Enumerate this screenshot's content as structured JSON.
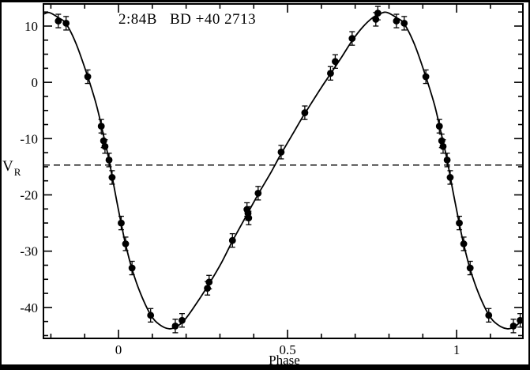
{
  "figure": {
    "title": {
      "series_id": "2:84B",
      "star_name": "BD +40 2713"
    },
    "x_axis": {
      "label": "Phase",
      "major_ticks": [
        0,
        0.5,
        1
      ],
      "major_tick_labels": [
        "0",
        "0.5",
        "1"
      ],
      "minor_ticks": [
        -0.2,
        -0.1,
        0.1,
        0.2,
        0.3,
        0.4,
        0.6,
        0.7,
        0.8,
        0.9,
        1.1
      ]
    },
    "y_axis": {
      "label_main": "V",
      "label_sub": "R",
      "major_ticks": [
        10,
        0,
        -10,
        -20,
        -30,
        -40
      ],
      "major_tick_labels": [
        "10",
        "0",
        "-10",
        "-20",
        "-30",
        "-40"
      ],
      "minor_tick_step": 2.5
    },
    "colors": {
      "background": "#ffffff",
      "frame": "#000000",
      "ink": "#000000"
    }
  },
  "chart_data": {
    "type": "scatter",
    "title": "2:84B  BD +40 2713",
    "xlabel": "Phase",
    "ylabel": "V_R",
    "xlim": [
      -0.222,
      1.196
    ],
    "ylim": [
      -45.5,
      13.93
    ],
    "grid": false,
    "legend": false,
    "systemic_velocity_dashed_line": -14.7,
    "error_bar": 1.2,
    "points": [
      [
        -0.178,
        10.9
      ],
      [
        -0.155,
        10.5
      ],
      [
        -0.091,
        1.0
      ],
      [
        -0.051,
        -7.8
      ],
      [
        -0.044,
        -10.4
      ],
      [
        -0.04,
        -11.4
      ],
      [
        -0.028,
        -13.8
      ],
      [
        -0.019,
        -16.9
      ],
      [
        0.008,
        -25.0
      ],
      [
        0.021,
        -28.7
      ],
      [
        0.04,
        -33.0
      ],
      [
        0.095,
        -41.4
      ],
      [
        0.168,
        -43.3
      ],
      [
        0.188,
        -42.3
      ],
      [
        0.263,
        -36.6
      ],
      [
        0.268,
        -35.5
      ],
      [
        0.337,
        -28.1
      ],
      [
        0.38,
        -22.6
      ],
      [
        0.383,
        -23.3
      ],
      [
        0.385,
        -24.1
      ],
      [
        0.413,
        -19.7
      ],
      [
        0.481,
        -12.4
      ],
      [
        0.551,
        -5.4
      ],
      [
        0.627,
        1.6
      ],
      [
        0.641,
        3.7
      ],
      [
        0.691,
        7.8
      ],
      [
        0.761,
        11.2
      ],
      [
        0.767,
        12.3
      ],
      [
        0.822,
        10.9
      ],
      [
        0.845,
        10.5
      ],
      [
        0.909,
        1.0
      ],
      [
        0.949,
        -7.8
      ],
      [
        0.956,
        -10.4
      ],
      [
        0.96,
        -11.4
      ],
      [
        0.972,
        -13.8
      ],
      [
        0.981,
        -16.9
      ],
      [
        1.008,
        -25.0
      ],
      [
        1.021,
        -28.7
      ],
      [
        1.04,
        -33.0
      ],
      [
        1.095,
        -41.4
      ],
      [
        1.168,
        -43.3
      ],
      [
        1.188,
        -42.3
      ]
    ],
    "model_curve": [
      [
        -0.222,
        12.1
      ],
      [
        -0.205,
        12.4
      ],
      [
        -0.178,
        11.5
      ],
      [
        -0.155,
        10.4
      ],
      [
        -0.125,
        6.8
      ],
      [
        -0.091,
        1.0
      ],
      [
        -0.065,
        -4.1
      ],
      [
        -0.044,
        -9.5
      ],
      [
        -0.028,
        -13.8
      ],
      [
        -0.01,
        -19.6
      ],
      [
        0.008,
        -25.1
      ],
      [
        0.021,
        -28.8
      ],
      [
        0.04,
        -33.2
      ],
      [
        0.065,
        -37.5
      ],
      [
        0.095,
        -41.3
      ],
      [
        0.12,
        -43.0
      ],
      [
        0.15,
        -43.8
      ],
      [
        0.175,
        -43.3
      ],
      [
        0.2,
        -41.9
      ],
      [
        0.235,
        -38.9
      ],
      [
        0.27,
        -35.6
      ],
      [
        0.305,
        -32.0
      ],
      [
        0.337,
        -28.2
      ],
      [
        0.37,
        -24.6
      ],
      [
        0.413,
        -19.9
      ],
      [
        0.45,
        -16.1
      ],
      [
        0.481,
        -12.7
      ],
      [
        0.52,
        -8.7
      ],
      [
        0.551,
        -5.5
      ],
      [
        0.56,
        -4.7
      ],
      [
        0.6,
        -0.9
      ],
      [
        0.627,
        1.5
      ],
      [
        0.66,
        4.5
      ],
      [
        0.691,
        7.4
      ],
      [
        0.722,
        9.8
      ],
      [
        0.752,
        11.5
      ],
      [
        0.778,
        12.3
      ],
      [
        0.795,
        12.4
      ],
      [
        0.822,
        11.5
      ],
      [
        0.845,
        10.4
      ],
      [
        0.875,
        6.8
      ],
      [
        0.909,
        1.0
      ],
      [
        0.935,
        -4.1
      ],
      [
        0.956,
        -9.5
      ],
      [
        0.972,
        -13.8
      ],
      [
        0.99,
        -19.6
      ],
      [
        1.008,
        -25.1
      ],
      [
        1.021,
        -28.8
      ],
      [
        1.04,
        -33.2
      ],
      [
        1.065,
        -37.5
      ],
      [
        1.095,
        -41.3
      ],
      [
        1.12,
        -43.0
      ],
      [
        1.15,
        -43.8
      ],
      [
        1.175,
        -43.3
      ],
      [
        1.196,
        -42.0
      ]
    ]
  }
}
